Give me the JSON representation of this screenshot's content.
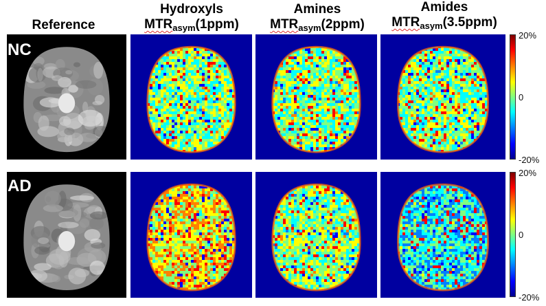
{
  "headers": {
    "reference": "Reference",
    "hydroxyls": {
      "name": "Hydroxyls",
      "mtr": "MTR",
      "sub": "asym",
      "ppm": "(1ppm)"
    },
    "amines": {
      "name": "Amines",
      "mtr": "MTR",
      "sub": "asym",
      "ppm": "(2ppm)"
    },
    "amides": {
      "name": "Amides",
      "mtr": "MTR",
      "sub": "asym",
      "ppm": "(3.5ppm)"
    }
  },
  "rows": [
    {
      "label": "NC"
    },
    {
      "label": "AD"
    }
  ],
  "colorbar": {
    "max": "20%",
    "mid": "0",
    "min": "-20%"
  },
  "colors": {
    "map_background": "#0000a0",
    "reference_background": "#000000",
    "colormap": [
      "#7f0000",
      "#ff0000",
      "#ff8000",
      "#ffff00",
      "#80ff80",
      "#00ffff",
      "#0080ff",
      "#0000ff",
      "#00008f"
    ]
  }
}
